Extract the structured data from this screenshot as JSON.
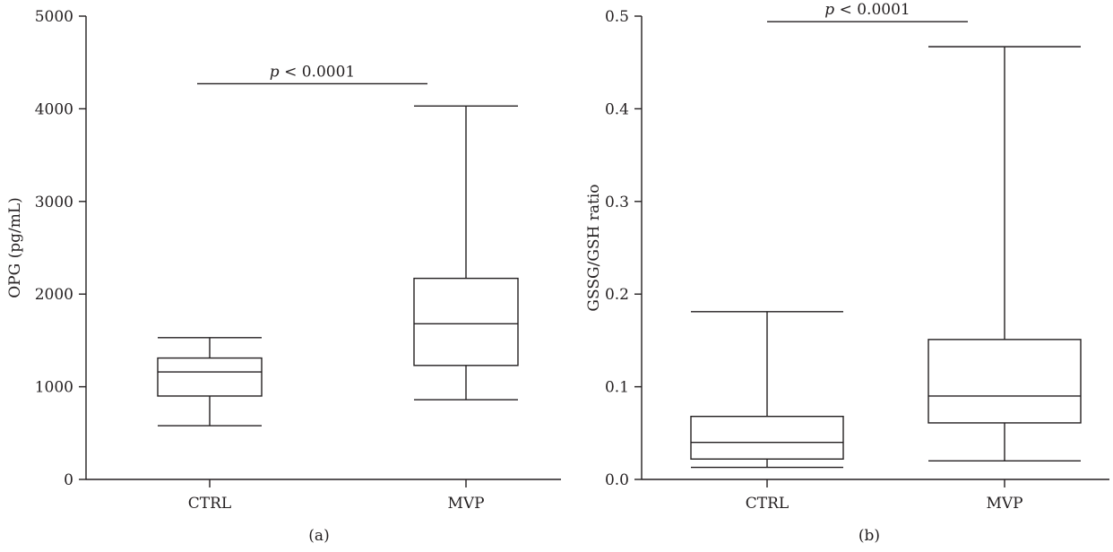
{
  "chart_data": [
    {
      "type": "boxplot",
      "panel_label": "(a)",
      "ylabel": "OPG (pg/mL)",
      "xlabel": "",
      "ylim": [
        0,
        5000
      ],
      "yticks": [
        0,
        1000,
        2000,
        3000,
        4000,
        5000
      ],
      "ytick_labels": [
        "0",
        "1000",
        "2000",
        "3000",
        "4000",
        "5000"
      ],
      "categories": [
        "CTRL",
        "MVP"
      ],
      "boxes": [
        {
          "category": "CTRL",
          "min": 580,
          "q1": 900,
          "median": 1160,
          "q3": 1310,
          "max": 1530
        },
        {
          "category": "MVP",
          "min": 860,
          "q1": 1230,
          "median": 1680,
          "q3": 2170,
          "max": 4030
        }
      ],
      "annotation": {
        "prefix": "p",
        "text": " < 0.0001",
        "y": 4270
      }
    },
    {
      "type": "boxplot",
      "panel_label": "(b)",
      "ylabel": "GSSG/GSH ratio",
      "xlabel": "",
      "ylim": [
        0,
        0.5
      ],
      "yticks": [
        0,
        0.1,
        0.2,
        0.3,
        0.4,
        0.5
      ],
      "ytick_labels": [
        "0.0",
        "0.1",
        "0.2",
        "0.3",
        "0.4",
        "0.5"
      ],
      "categories": [
        "CTRL",
        "MVP"
      ],
      "boxes": [
        {
          "category": "CTRL",
          "min": 0.013,
          "q1": 0.022,
          "median": 0.04,
          "q3": 0.068,
          "max": 0.181
        },
        {
          "category": "MVP",
          "min": 0.02,
          "q1": 0.061,
          "median": 0.09,
          "q3": 0.151,
          "max": 0.467
        }
      ],
      "annotation": {
        "prefix": "p",
        "text": " < 0.0001",
        "y": 0.494
      }
    }
  ]
}
